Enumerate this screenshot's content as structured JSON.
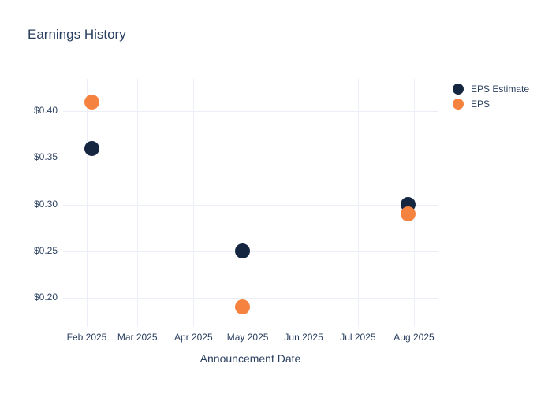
{
  "chart_data": {
    "type": "scatter",
    "title": "Earnings History",
    "xlabel": "Announcement Date",
    "ylabel": "",
    "grid": true,
    "legend_position": "right",
    "x_axis": {
      "unit": "days_from_Feb_1_2025",
      "range": [
        -13.1,
        194.1
      ],
      "ticks": [
        {
          "day": 0,
          "label": "Feb 2025"
        },
        {
          "day": 28,
          "label": "Mar 2025"
        },
        {
          "day": 59,
          "label": "Apr 2025"
        },
        {
          "day": 89,
          "label": "May 2025"
        },
        {
          "day": 120,
          "label": "Jun 2025"
        },
        {
          "day": 150,
          "label": "Jul 2025"
        },
        {
          "day": 181,
          "label": "Aug 2025"
        }
      ]
    },
    "y_axis": {
      "range": [
        0.1688,
        0.4346
      ],
      "ticks": [
        {
          "value": 0.2,
          "label": "$0.20"
        },
        {
          "value": 0.25,
          "label": "$0.25"
        },
        {
          "value": 0.3,
          "label": "$0.30"
        },
        {
          "value": 0.35,
          "label": "$0.35"
        },
        {
          "value": 0.4,
          "label": "$0.40"
        }
      ]
    },
    "series": [
      {
        "name": "EPS Estimate",
        "color": "#152640",
        "points": [
          {
            "x_day": 2.6,
            "date_approx": "2025-02-03",
            "value": 0.36
          },
          {
            "x_day": 85.9,
            "date_approx": "2025-04-28",
            "value": 0.25
          },
          {
            "x_day": 177.9,
            "date_approx": "2025-07-29",
            "value": 0.3
          }
        ]
      },
      {
        "name": "EPS",
        "color": "#f5823e",
        "points": [
          {
            "x_day": 2.6,
            "date_approx": "2025-02-03",
            "value": 0.41
          },
          {
            "x_day": 85.9,
            "date_approx": "2025-04-28",
            "value": 0.19
          },
          {
            "x_day": 177.9,
            "date_approx": "2025-07-29",
            "value": 0.29
          }
        ]
      }
    ],
    "colors": {
      "text": "#2a3f5f",
      "gridline": "#ebeef6",
      "background": "#ffffff",
      "eps_estimate": "#152640",
      "eps": "#f5823e"
    }
  }
}
